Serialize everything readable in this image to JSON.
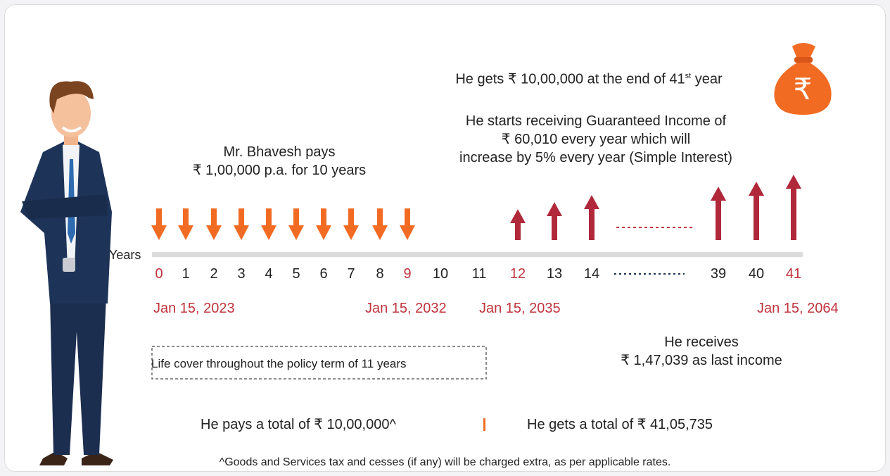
{
  "top_note": {
    "text": "He gets ₹ 10,00,000 at the end of 41",
    "sup": "st",
    "tail": " year"
  },
  "income_note": {
    "lines": [
      "He starts receiving Guaranteed Income of",
      "₹ 60,010 every year which will",
      "increase by 5% every year (Simple Interest)"
    ]
  },
  "pay_note": {
    "lines": [
      "Mr. Bhavesh pays",
      "₹ 1,00,000 p.a. for 10 years"
    ]
  },
  "timeline": {
    "label": "Years",
    "years": [
      {
        "label": "0",
        "color": "#c0343d"
      },
      {
        "label": "1",
        "color": "#222"
      },
      {
        "label": "2",
        "color": "#222"
      },
      {
        "label": "3",
        "color": "#222"
      },
      {
        "label": "4",
        "color": "#222"
      },
      {
        "label": "5",
        "color": "#222"
      },
      {
        "label": "6",
        "color": "#222"
      },
      {
        "label": "7",
        "color": "#222"
      },
      {
        "label": "8",
        "color": "#222"
      },
      {
        "label": "9",
        "color": "#c0343d"
      },
      {
        "label": "10",
        "color": "#222"
      },
      {
        "label": "11",
        "color": "#222"
      },
      {
        "label": "12",
        "color": "#c0343d"
      },
      {
        "label": "13",
        "color": "#222"
      },
      {
        "label": "14",
        "color": "#222"
      },
      {
        "label": "39",
        "color": "#222"
      },
      {
        "label": "40",
        "color": "#222"
      },
      {
        "label": "41",
        "color": "#c0343d"
      }
    ],
    "dates": [
      "Jan 15, 2023",
      "Jan 15, 2032",
      "Jan 15, 2035",
      "Jan 15, 2064"
    ]
  },
  "life_cover": "Life cover throughout the policy term of 11 years",
  "last_income": {
    "lines": [
      "He receives",
      "₹ 1,47,039 as last income"
    ]
  },
  "totals": {
    "pays": "He pays a total of ₹ 10,00,000^",
    "gets": "He gets a total of ₹ 41,05,735"
  },
  "footnote": "^Goods and Services tax and cesses (if any) will be charged extra, as per applicable rates."
}
